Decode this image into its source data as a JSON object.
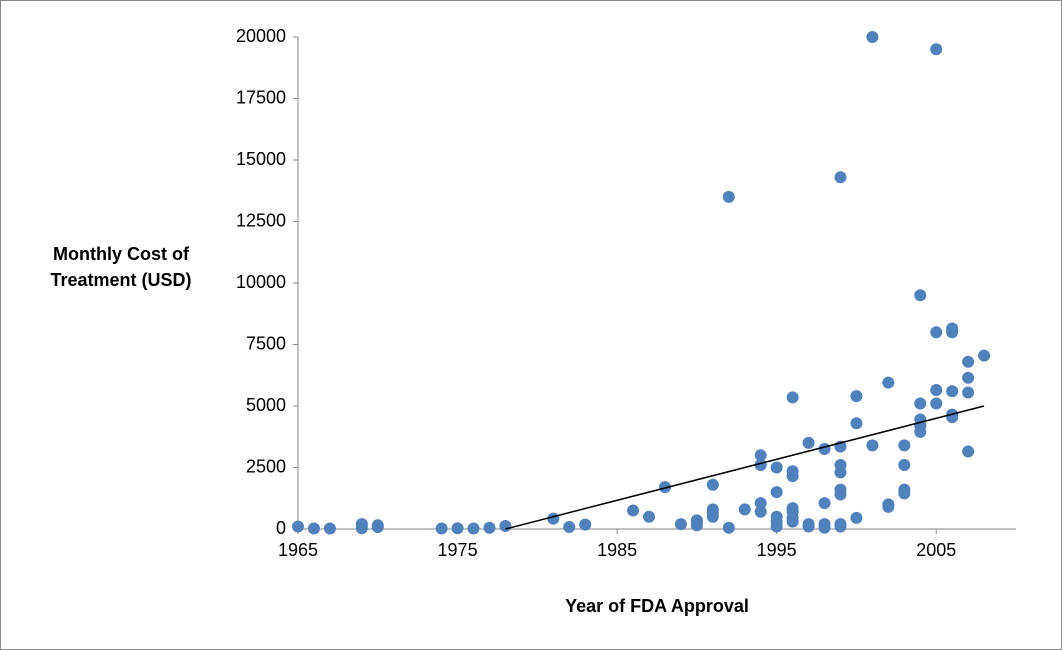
{
  "chart_data": {
    "type": "scatter",
    "xlabel": "Year of FDA Approval",
    "ylabel": "Monthly Cost of Treatment (USD)",
    "xlim": [
      1965,
      2010
    ],
    "xticks": [
      1965,
      1975,
      1985,
      1995,
      2005
    ],
    "ylim": [
      0,
      20000
    ],
    "yticks": [
      0,
      2500,
      5000,
      7500,
      10000,
      12500,
      15000,
      17500,
      20000
    ],
    "grid": false,
    "series": [
      {
        "color": "#4f81bd",
        "x": [
          1965,
          1966,
          1967,
          1969,
          1969,
          1969,
          1970,
          1970,
          1974,
          1975,
          1976,
          1977,
          1978,
          1981,
          1982,
          1983,
          1986,
          1987,
          1988,
          1989,
          1990,
          1990,
          1990,
          1991,
          1991,
          1991,
          1991,
          1992,
          1992,
          1993,
          1994,
          1994,
          1994,
          1994,
          1995,
          1995,
          1995,
          1995,
          1995,
          1996,
          1996,
          1996,
          1996,
          1996,
          1996,
          1996,
          1997,
          1997,
          1997,
          1998,
          1998,
          1998,
          1998,
          1999,
          1999,
          1999,
          1999,
          1999,
          1999,
          1999,
          1999,
          2000,
          2000,
          2000,
          2001,
          2001,
          2002,
          2002,
          2002,
          2003,
          2003,
          2003,
          2003,
          2004,
          2004,
          2004,
          2004,
          2004,
          2005,
          2005,
          2005,
          2005,
          2006,
          2006,
          2006,
          2006,
          2006,
          2007,
          2007,
          2007,
          2007,
          2008
        ],
        "values": [
          100,
          20,
          20,
          200,
          30,
          130,
          150,
          80,
          20,
          30,
          20,
          50,
          120,
          420,
          80,
          180,
          750,
          500,
          1700,
          200,
          350,
          150,
          250,
          1800,
          800,
          650,
          500,
          13500,
          50,
          800,
          3000,
          2600,
          1050,
          700,
          2500,
          1500,
          500,
          300,
          100,
          5350,
          2350,
          2150,
          850,
          700,
          450,
          300,
          3500,
          200,
          100,
          3250,
          1050,
          200,
          50,
          14300,
          3350,
          2600,
          2300,
          1600,
          1400,
          200,
          100,
          5400,
          4300,
          450,
          20000,
          3400,
          5950,
          1000,
          900,
          3400,
          2600,
          1600,
          1450,
          9500,
          5100,
          4450,
          4200,
          3950,
          19500,
          8000,
          5650,
          5100,
          8150,
          8000,
          5600,
          4650,
          4550,
          6800,
          6150,
          5550,
          3150,
          7050
        ]
      }
    ],
    "trendline": {
      "color": "#000000",
      "x": [
        1978,
        2008
      ],
      "values": [
        0,
        5000
      ]
    }
  }
}
